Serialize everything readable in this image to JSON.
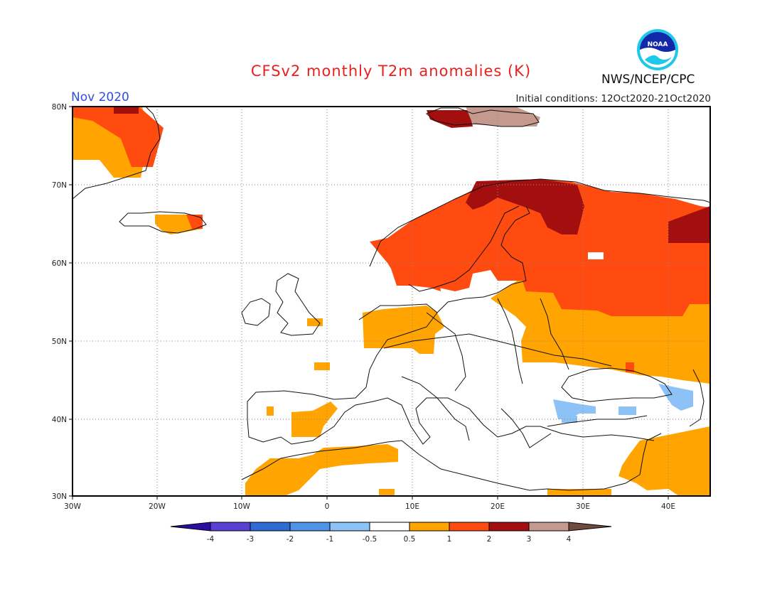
{
  "title": "CFSv2 monthly T2m anomalies (K)",
  "valid_month": "Nov 2020",
  "initial_conditions": "Initial conditions: 12Oct2020-21Oct2020",
  "agency": "NWS/NCEP/CPC",
  "logo_text": "NOAA",
  "lat_labels": [
    "80N",
    "70N",
    "60N",
    "50N",
    "40N",
    "30N"
  ],
  "lon_labels": [
    "30W",
    "20W",
    "10W",
    "0",
    "10E",
    "20E",
    "30E",
    "40E"
  ],
  "colorbar": {
    "labels": [
      "-4",
      "-3",
      "-2",
      "-1",
      "-0.5",
      "0.5",
      "1",
      "2",
      "3",
      "4"
    ],
    "colors": [
      "#2a0ea3",
      "#5a3fd4",
      "#2f6bd4",
      "#4f93ea",
      "#8cc2f5",
      "#ffffff",
      "#ffa400",
      "#ff4a10",
      "#a30f0f",
      "#c59a8e",
      "#6e4a40"
    ]
  },
  "anomaly_colors": {
    "warm_0_5_to_1": "#ffa400",
    "warm_1_to_2": "#ff4a10",
    "warm_2_to_3": "#a30f0f",
    "warm_3_to_4": "#c59a8e",
    "cool_0_5_to_1": "#8cc2f5"
  }
}
